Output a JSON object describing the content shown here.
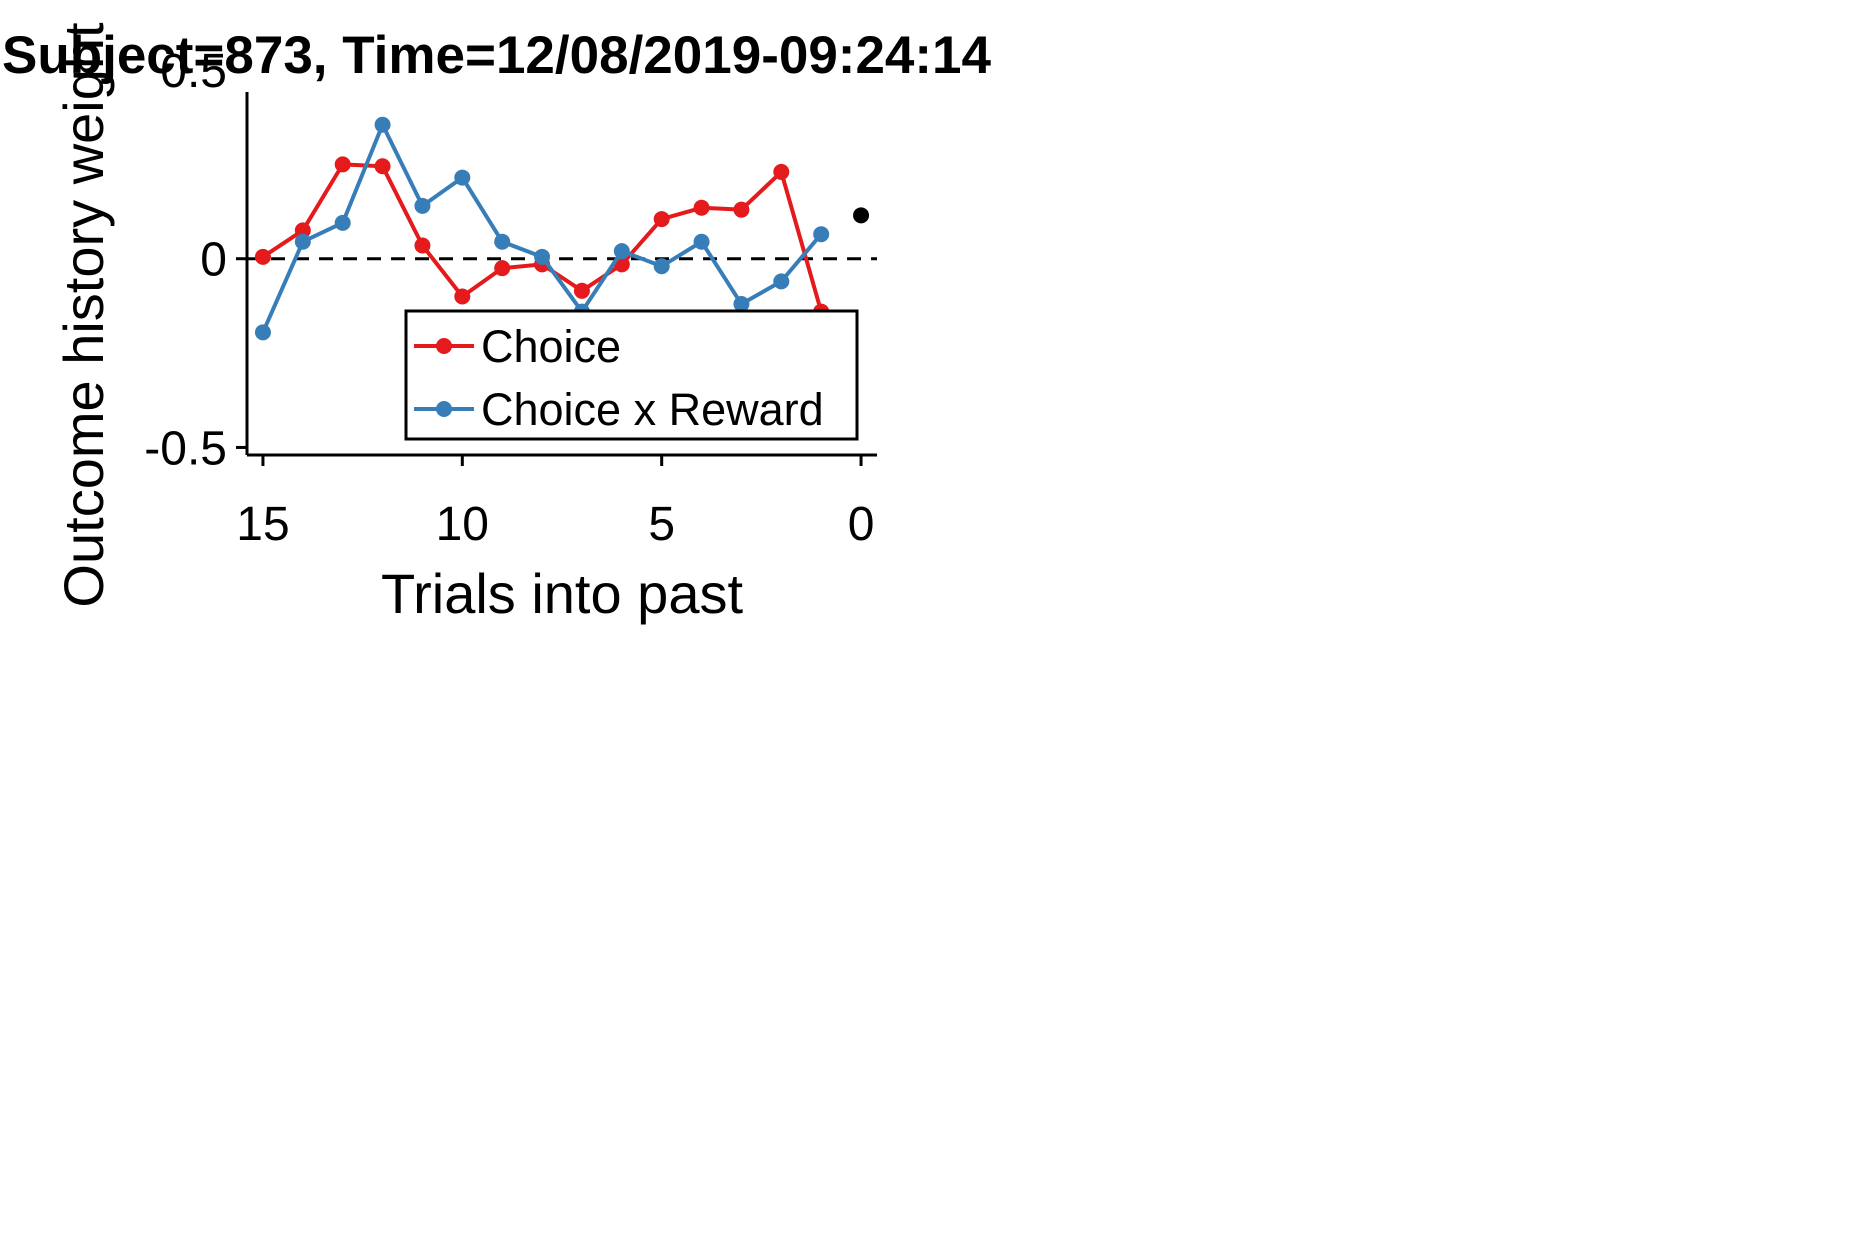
{
  "chart_data": {
    "type": "line",
    "title": "Subject=873, Time=12/08/2019-09:24:14",
    "xlabel": "Trials into past",
    "ylabel": "Outcome history weight",
    "xlim": [
      15.4,
      -0.4
    ],
    "ylim": [
      -0.52,
      0.5
    ],
    "x_ticks": [
      15,
      10,
      5,
      0
    ],
    "x_tick_labels": [
      "15",
      "10",
      "5",
      "0"
    ],
    "y_ticks": [
      -0.5,
      0,
      0.5
    ],
    "y_tick_labels": [
      "-0.5",
      "0",
      "0.5"
    ],
    "reference_line": {
      "y": 0,
      "style": "dashed",
      "color": "#000000"
    },
    "legend": {
      "placement": "lower-right"
    },
    "series": [
      {
        "name": "Choice",
        "color": "#e41a1c",
        "x": [
          15,
          14,
          13,
          12,
          11,
          10,
          9,
          8,
          7,
          6,
          5,
          4,
          3,
          2,
          1
        ],
        "y": [
          0.005,
          0.075,
          0.25,
          0.245,
          0.035,
          -0.1,
          -0.025,
          -0.015,
          -0.085,
          -0.015,
          0.105,
          0.135,
          0.13,
          0.23,
          -0.14
        ]
      },
      {
        "name": "Choice x Reward",
        "color": "#377eb8",
        "x": [
          15,
          14,
          13,
          12,
          11,
          10,
          9,
          8,
          7,
          6,
          5,
          4,
          3,
          2,
          1
        ],
        "y": [
          -0.195,
          0.045,
          0.095,
          0.355,
          0.14,
          0.215,
          0.045,
          0.005,
          -0.14,
          0.02,
          -0.02,
          0.045,
          -0.12,
          -0.06,
          0.065
        ]
      }
    ],
    "bias_point": {
      "x": 0,
      "y": 0.115,
      "color": "#000000"
    }
  }
}
